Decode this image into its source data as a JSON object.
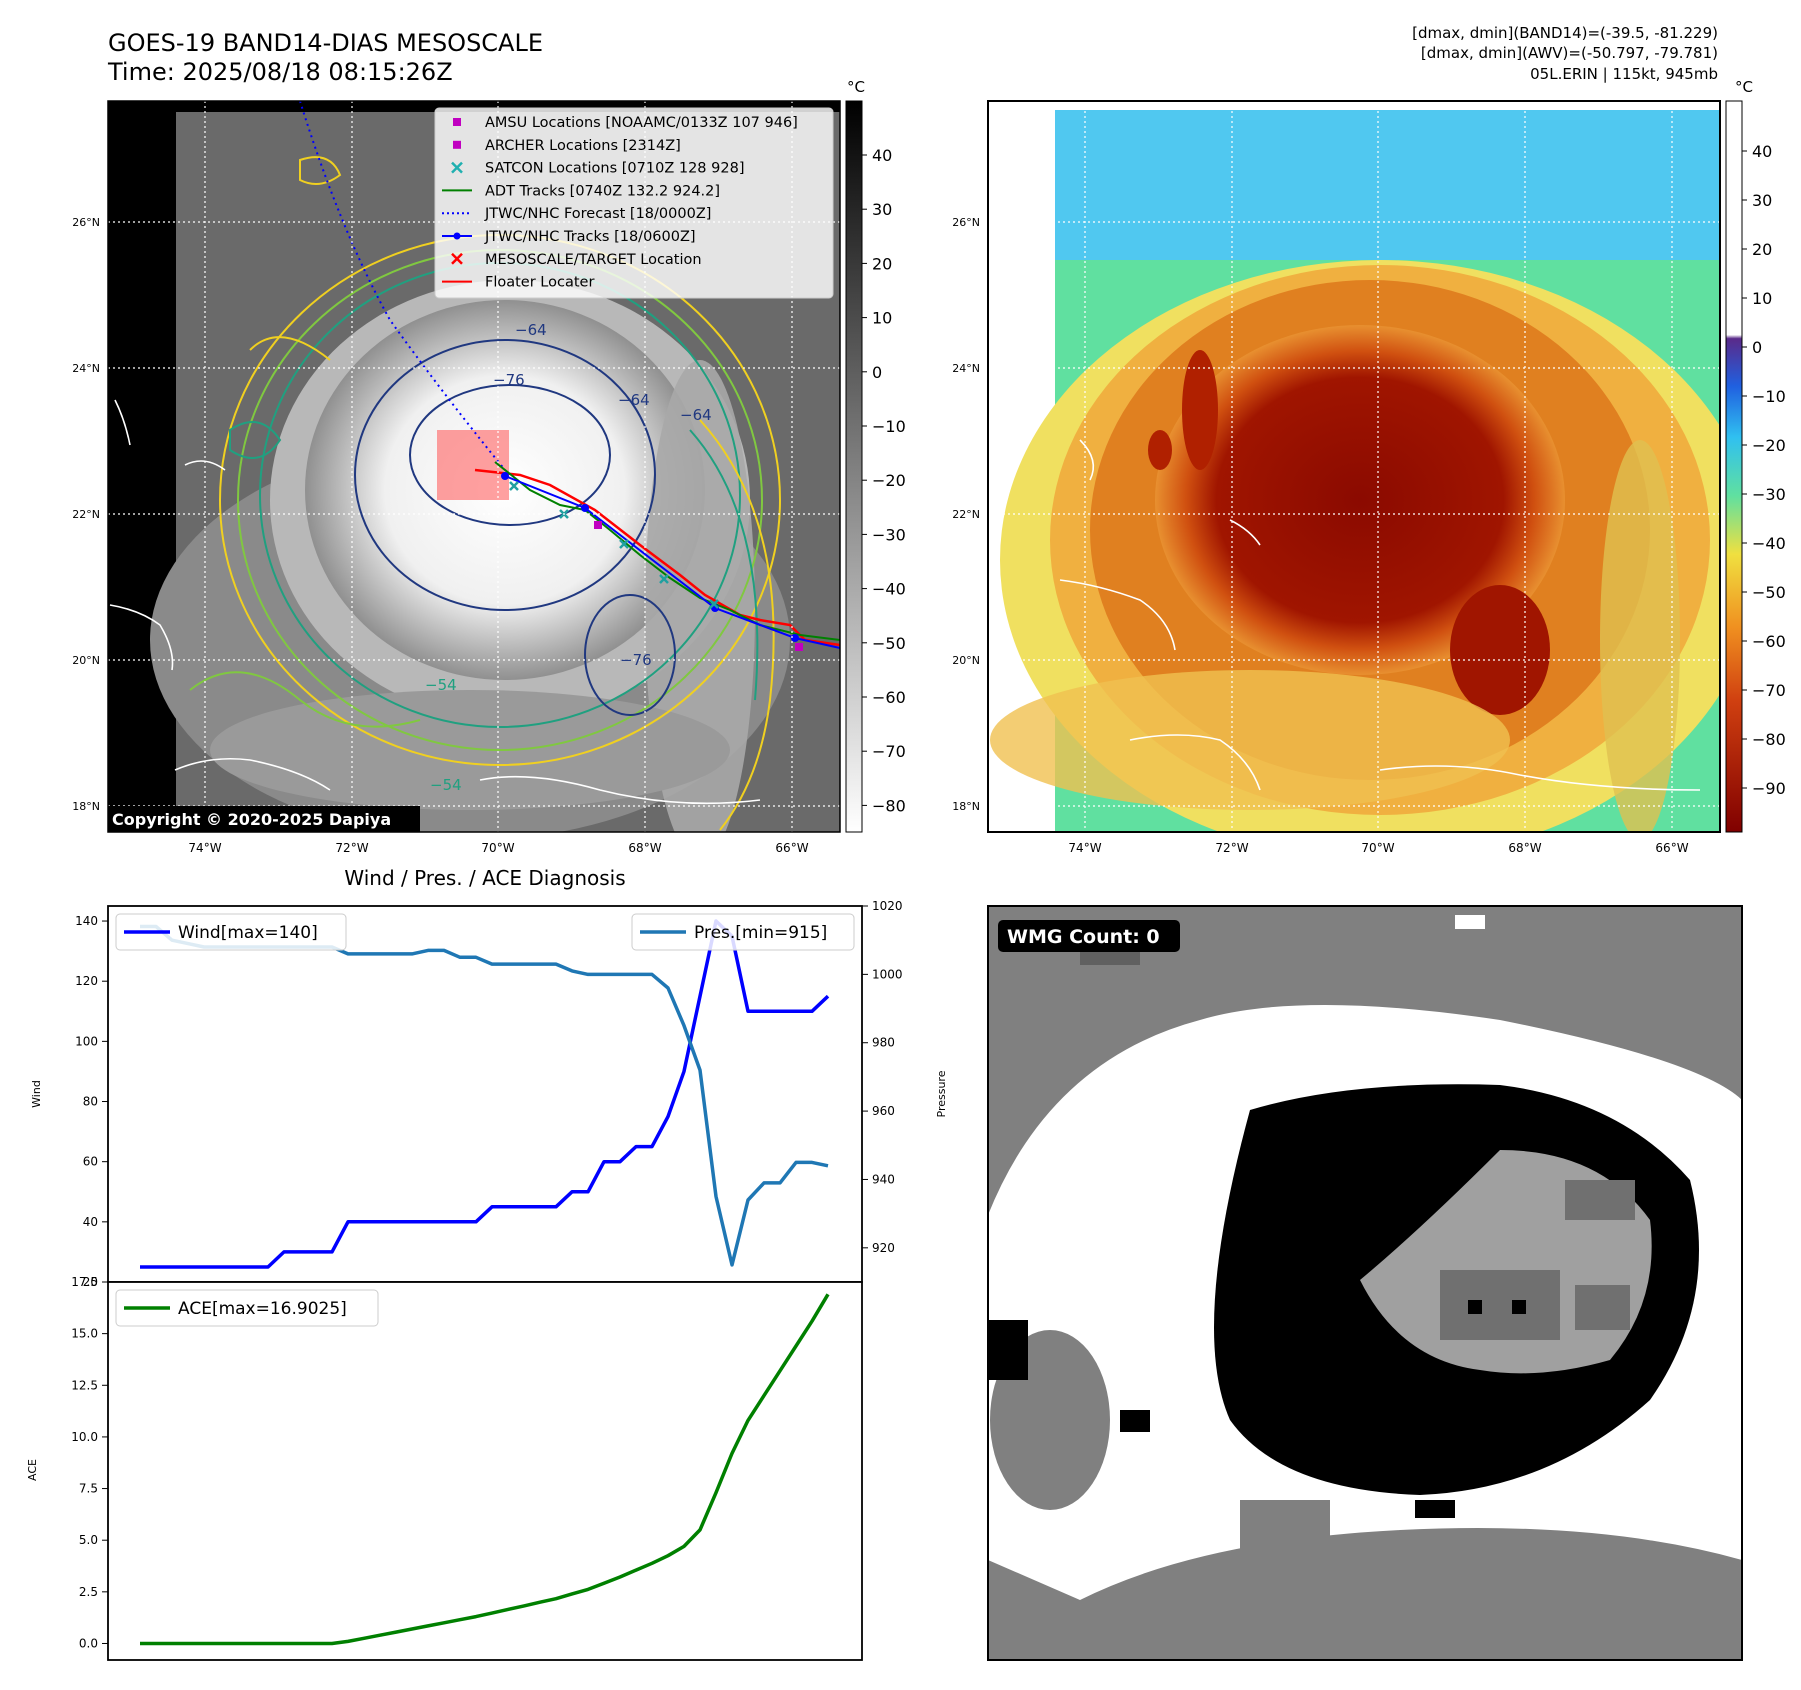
{
  "header": {
    "title_line1": "GOES-19 BAND14-DIAS MESOSCALE",
    "title_line2": "Time: 2025/08/18 08:15:26Z",
    "stats_line1": "[dmax, dmin](BAND14)=(-39.5, -81.229)",
    "stats_line2": "[dmax, dmin](AWV)=(-50.797, -79.781)",
    "stats_line3": "05L.ERIN | 115kt, 945mb"
  },
  "ir_panel": {
    "copyright": "Copyright © 2020-2025 Dapiya",
    "colorbar_unit": "°C",
    "colorbar_ticks": [
      "40",
      "30",
      "20",
      "10",
      "0",
      "−10",
      "−20",
      "−30",
      "−40",
      "−50",
      "−60",
      "−70",
      "−80"
    ],
    "contour_labels": [
      "−64",
      "−76",
      "−64",
      "−64",
      "−76",
      "−54",
      "−54",
      "−54"
    ],
    "lat_labels": [
      "26°N",
      "24°N",
      "22°N",
      "20°N",
      "18°N"
    ],
    "lon_labels": [
      "74°W",
      "72°W",
      "70°W",
      "68°W",
      "66°W"
    ],
    "legend": [
      {
        "label": "AMSU Locations [NOAAMC/0133Z 107 946]",
        "kind": "square",
        "color": "#c000c0"
      },
      {
        "label": "ARCHER Locations [2314Z]",
        "kind": "square",
        "color": "#c000c0"
      },
      {
        "label": "SATCON Locations [0710Z 128 928]",
        "kind": "x",
        "color": "#20b0b0"
      },
      {
        "label": "ADT Tracks [0740Z 132.2 924.2]",
        "kind": "line",
        "color": "#008000"
      },
      {
        "label": "JTWC/NHC Forecast [18/0000Z]",
        "kind": "dotted",
        "color": "#0000ff"
      },
      {
        "label": "JTWC/NHC Tracks [18/0600Z]",
        "kind": "line-dot",
        "color": "#0000ff"
      },
      {
        "label": "MESOSCALE/TARGET Location",
        "kind": "x",
        "color": "#ff0000"
      },
      {
        "label": "Floater Locater",
        "kind": "line",
        "color": "#ff0000"
      }
    ]
  },
  "awv_panel": {
    "colorbar_unit": "°C",
    "colorbar_ticks": [
      "40",
      "30",
      "20",
      "10",
      "0",
      "−10",
      "−20",
      "−30",
      "−40",
      "−50",
      "−60",
      "−70",
      "−80",
      "−90"
    ],
    "lat_labels": [
      "26°N",
      "24°N",
      "22°N",
      "20°N",
      "18°N"
    ],
    "lon_labels": [
      "74°W",
      "72°W",
      "70°W",
      "68°W",
      "66°W"
    ]
  },
  "wmg_panel": {
    "badge": "WMG Count: 0"
  },
  "diag_panel": {
    "title": "Wind / Pres. / ACE Diagnosis"
  },
  "colors": {
    "wind": "#0000ff",
    "pressure": "#1f77b4",
    "ace": "#008000"
  },
  "chart_data": [
    {
      "type": "line",
      "title": "Wind / Pres. / ACE Diagnosis",
      "ylabel": "Wind",
      "y2label": "Pressure",
      "ylim": [
        20,
        145
      ],
      "y2lim": [
        910,
        1020
      ],
      "yticks": [
        20,
        40,
        60,
        80,
        100,
        120,
        140
      ],
      "y2ticks": [
        920,
        940,
        960,
        980,
        1000,
        1020
      ],
      "series": [
        {
          "name": "Wind[max=140]",
          "axis": "left",
          "values": [
            25,
            25,
            25,
            25,
            25,
            25,
            25,
            25,
            25,
            30,
            30,
            30,
            30,
            40,
            40,
            40,
            40,
            40,
            40,
            40,
            40,
            40,
            45,
            45,
            45,
            45,
            45,
            50,
            50,
            60,
            60,
            65,
            65,
            75,
            90,
            115,
            140,
            135,
            110,
            110,
            110,
            110,
            110,
            115
          ]
        },
        {
          "name": "Pres.[min=915]",
          "axis": "right",
          "values": [
            1014,
            1014,
            1010,
            1009,
            1008,
            1008,
            1008,
            1008,
            1008,
            1008,
            1008,
            1008,
            1008,
            1006,
            1006,
            1006,
            1006,
            1006,
            1007,
            1007,
            1005,
            1005,
            1003,
            1003,
            1003,
            1003,
            1003,
            1001,
            1000,
            1000,
            1000,
            1000,
            1000,
            996,
            985,
            972,
            935,
            915,
            934,
            939,
            939,
            945,
            945,
            944
          ]
        }
      ]
    },
    {
      "type": "line",
      "ylabel": "ACE",
      "ylim": [
        -0.8,
        17.5
      ],
      "yticks": [
        "0.0",
        "2.5",
        "5.0",
        "7.5",
        "10.0",
        "12.5",
        "15.0",
        "17.5"
      ],
      "series": [
        {
          "name": "ACE[max=16.9025]",
          "values": [
            0,
            0,
            0,
            0,
            0,
            0,
            0,
            0,
            0,
            0,
            0,
            0,
            0,
            0.1,
            0.25,
            0.4,
            0.55,
            0.7,
            0.85,
            1.0,
            1.15,
            1.3,
            1.47,
            1.65,
            1.82,
            2.0,
            2.17,
            2.4,
            2.62,
            2.92,
            3.22,
            3.55,
            3.88,
            4.25,
            4.7,
            5.5,
            7.3,
            9.2,
            10.8,
            12.0,
            13.2,
            14.4,
            15.6,
            16.9025
          ]
        }
      ]
    }
  ]
}
